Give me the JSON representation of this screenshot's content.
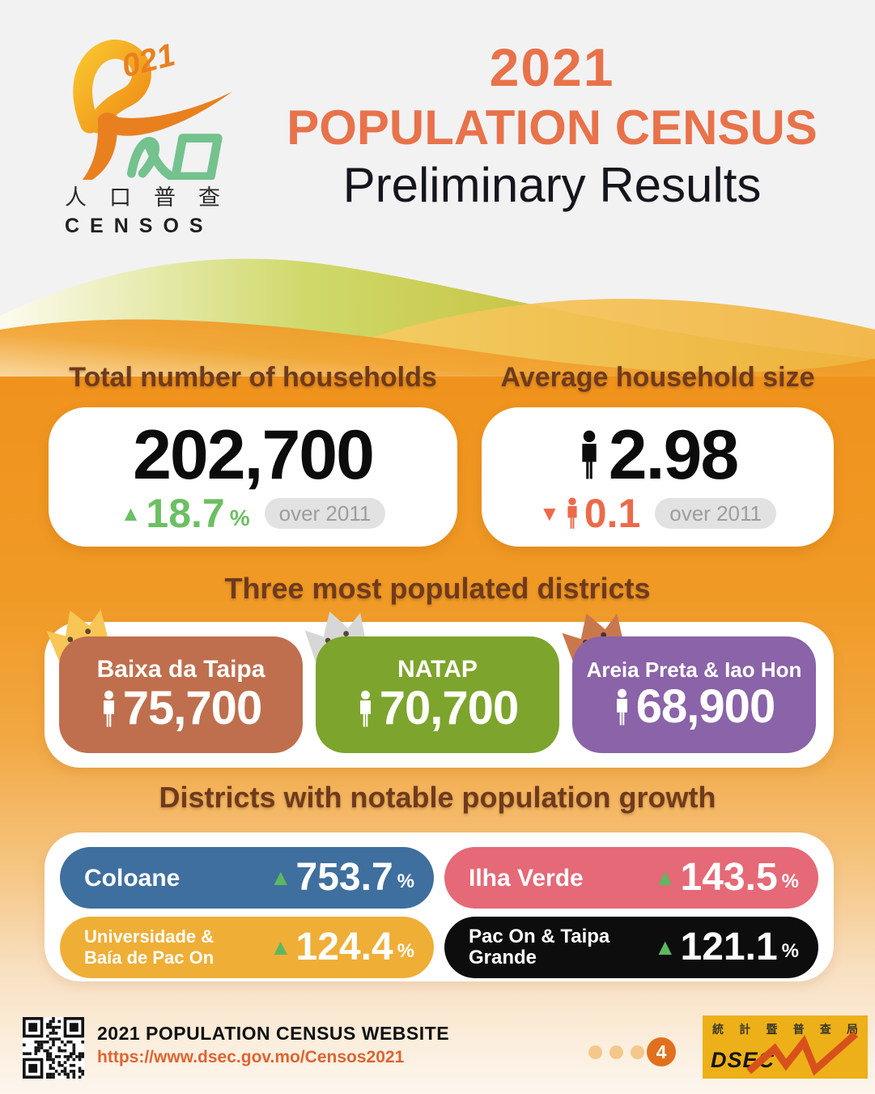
{
  "colors": {
    "accent_orange": "#e8724a",
    "heading_brown": "#6f3b1d",
    "body_orange": "#ef931d",
    "green_up": "#6cbf63",
    "red_down": "#ec6a4a",
    "badge_bg": "#e2e2e2",
    "badge_text": "#9d9d9d",
    "page_circle": "#e1701e",
    "dsec_yellow": "#eeb018"
  },
  "header": {
    "logo": {
      "year_text": "021",
      "chinese": "人口普查",
      "latin": "CENSOS"
    },
    "title_line1": "2021",
    "title_line2": "POPULATION CENSUS",
    "subtitle": "Preliminary Results"
  },
  "stats": {
    "households": {
      "heading": "Total number of households",
      "value": "202,700",
      "change_arrow": "▲",
      "change_value": "18.7",
      "change_unit": "%",
      "badge": "over 2011"
    },
    "avg_size": {
      "heading": "Average household size",
      "value": "2.98",
      "change_arrow": "▼",
      "change_value": "0.1",
      "badge": "over 2011"
    }
  },
  "top_districts": {
    "heading": "Three most populated districts",
    "items": [
      {
        "name": "Baixa da Taipa",
        "population": "75,700",
        "color": "#bf6f4d",
        "crown_color": "#f7c654"
      },
      {
        "name": "NATAP",
        "population": "70,700",
        "color": "#7da42c",
        "crown_color": "#d7d7d7"
      },
      {
        "name": "Areia Preta & Iao Hon",
        "population": "68,900",
        "color": "#8a63a8",
        "crown_color": "#c9784e"
      }
    ]
  },
  "growth_districts": {
    "heading": "Districts with notable population growth",
    "arrow": "▲",
    "unit": "%",
    "items": [
      {
        "name": "Coloane",
        "growth": "753.7",
        "color": "#3f6f9e"
      },
      {
        "name": "Ilha Verde",
        "growth": "143.5",
        "color": "#e56977"
      },
      {
        "name_line1": "Universidade &",
        "name_line2": "Baía de Pac On",
        "growth": "124.4",
        "color": "#efae36"
      },
      {
        "name": "Pac On & Taipa Grande",
        "growth": "121.1",
        "color": "#0d0d0d"
      }
    ]
  },
  "footer": {
    "website_label": "2021 POPULATION CENSUS WEBSITE",
    "website_url": "https://www.dsec.gov.mo/Censos2021",
    "page_number": "4",
    "dsec_chinese": [
      "統",
      "計",
      "暨",
      "普",
      "查",
      "局"
    ],
    "dsec_name": "DSEC"
  }
}
